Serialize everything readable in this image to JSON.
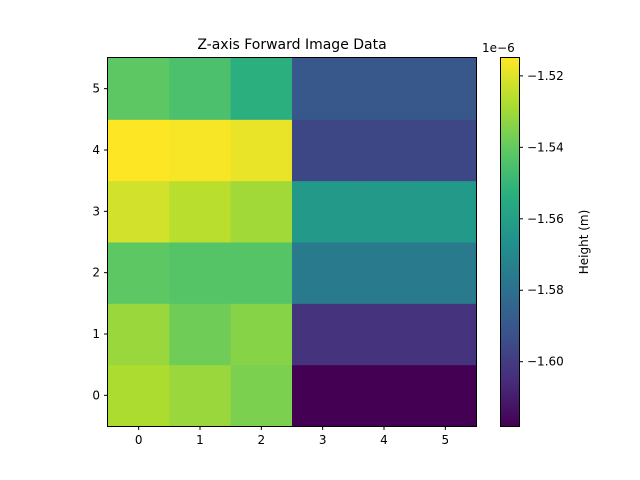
{
  "chart_data": {
    "type": "heatmap",
    "title": "Z-axis Forward Image Data",
    "xlabel": "",
    "ylabel": "",
    "x_ticks": [
      "0",
      "1",
      "2",
      "3",
      "4",
      "5"
    ],
    "y_ticks": [
      "0",
      "1",
      "2",
      "3",
      "4",
      "5"
    ],
    "colormap": "viridis",
    "origin": "lower",
    "grid": false,
    "values": [
      [
        -1.528e-06,
        -1.531e-06,
        -1.536e-06,
        -1.618e-06,
        -1.618e-06,
        -1.618e-06
      ],
      [
        -1.531e-06,
        -1.538e-06,
        -1.534e-06,
        -1.603e-06,
        -1.603e-06,
        -1.603e-06
      ],
      [
        -1.541e-06,
        -1.543e-06,
        -1.543e-06,
        -1.576e-06,
        -1.576e-06,
        -1.576e-06
      ],
      [
        -1.522e-06,
        -1.526e-06,
        -1.53e-06,
        -1.563e-06,
        -1.563e-06,
        -1.563e-06
      ],
      [
        -1.515e-06,
        -1.516e-06,
        -1.518e-06,
        -1.596e-06,
        -1.596e-06,
        -1.596e-06
      ],
      [
        -1.541e-06,
        -1.545e-06,
        -1.553e-06,
        -1.59e-06,
        -1.59e-06,
        -1.59e-06
      ]
    ],
    "colorbar": {
      "label": "Height (m)",
      "multiplier": "1e−6",
      "range": [
        -1.618e-06,
        -1.515e-06
      ],
      "ticks": [
        -1.52e-06,
        -1.54e-06,
        -1.56e-06,
        -1.58e-06,
        -1.6e-06
      ],
      "tick_labels": [
        "−1.52",
        "−1.54",
        "−1.56",
        "−1.58",
        "−1.60"
      ]
    }
  }
}
